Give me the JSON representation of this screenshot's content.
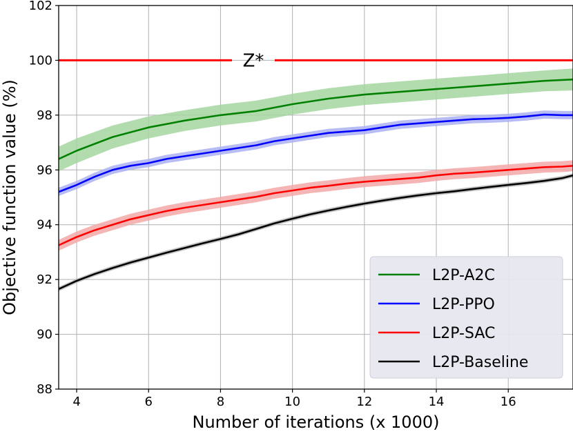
{
  "chart_data": {
    "type": "line",
    "title": "",
    "xlabel": "Number of iterations (x 1000)",
    "ylabel": "Objective function value (%)",
    "xlim": [
      3.5,
      17.8
    ],
    "ylim": [
      88,
      102
    ],
    "xticks": [
      4,
      6,
      8,
      10,
      12,
      14,
      16
    ],
    "yticks": [
      88,
      90,
      92,
      94,
      96,
      98,
      100,
      102
    ],
    "grid": true,
    "legend_position": "bottom-right",
    "reference_line": {
      "label": "Z*",
      "y": 100,
      "color": "#ff0000"
    },
    "series": [
      {
        "name": "L2P-A2C",
        "color": "#008000",
        "band_color": "#a5d6a0",
        "x": [
          3.5,
          4,
          5,
          6,
          7,
          8,
          9,
          10,
          11,
          12,
          13,
          14,
          15,
          16,
          17,
          17.8
        ],
        "y": [
          96.4,
          96.7,
          97.2,
          97.55,
          97.8,
          98.0,
          98.15,
          98.4,
          98.6,
          98.75,
          98.85,
          98.95,
          99.05,
          99.15,
          99.25,
          99.3
        ],
        "band": [
          0.45,
          0.45,
          0.42,
          0.4,
          0.38,
          0.38,
          0.38,
          0.38,
          0.38,
          0.38,
          0.38,
          0.38,
          0.38,
          0.38,
          0.38,
          0.4
        ]
      },
      {
        "name": "L2P-PPO",
        "color": "#0000ff",
        "band_color": "#aab0f2",
        "x": [
          3.5,
          4,
          4.5,
          5,
          5.5,
          6,
          6.5,
          7,
          7.5,
          8,
          8.5,
          9,
          9.5,
          10,
          10.5,
          11,
          11.5,
          12,
          12.5,
          13,
          13.5,
          14,
          14.5,
          15,
          15.5,
          16,
          16.5,
          17,
          17.5,
          17.8
        ],
        "y": [
          95.2,
          95.45,
          95.75,
          96.0,
          96.15,
          96.25,
          96.4,
          96.5,
          96.6,
          96.7,
          96.8,
          96.9,
          97.05,
          97.15,
          97.25,
          97.35,
          97.4,
          97.45,
          97.55,
          97.65,
          97.7,
          97.75,
          97.8,
          97.85,
          97.87,
          97.9,
          97.95,
          98.02,
          98.0,
          98.0
        ],
        "band": [
          0.15,
          0.15,
          0.15,
          0.15,
          0.15,
          0.15,
          0.15,
          0.15,
          0.15,
          0.15,
          0.15,
          0.15,
          0.15,
          0.15,
          0.15,
          0.15,
          0.15,
          0.15,
          0.15,
          0.15,
          0.15,
          0.15,
          0.15,
          0.15,
          0.15,
          0.15,
          0.15,
          0.15,
          0.15,
          0.15
        ]
      },
      {
        "name": "L2P-SAC",
        "color": "#ff0000",
        "band_color": "#f5a8a8",
        "x": [
          3.5,
          4,
          4.5,
          5,
          5.5,
          6,
          6.5,
          7,
          7.5,
          8,
          8.5,
          9,
          9.5,
          10,
          10.5,
          11,
          11.5,
          12,
          12.5,
          13,
          13.5,
          14,
          14.5,
          15,
          15.5,
          16,
          16.5,
          17,
          17.5,
          17.8
        ],
        "y": [
          93.25,
          93.55,
          93.8,
          94.0,
          94.2,
          94.35,
          94.5,
          94.62,
          94.72,
          94.82,
          94.92,
          95.02,
          95.15,
          95.25,
          95.35,
          95.42,
          95.5,
          95.57,
          95.62,
          95.67,
          95.72,
          95.8,
          95.86,
          95.9,
          95.95,
          96.0,
          96.05,
          96.1,
          96.12,
          96.15
        ],
        "band": [
          0.2,
          0.2,
          0.2,
          0.2,
          0.2,
          0.2,
          0.2,
          0.2,
          0.2,
          0.2,
          0.2,
          0.2,
          0.2,
          0.2,
          0.2,
          0.2,
          0.2,
          0.2,
          0.2,
          0.2,
          0.2,
          0.2,
          0.2,
          0.2,
          0.2,
          0.2,
          0.2,
          0.2,
          0.2,
          0.2
        ]
      },
      {
        "name": "L2P-Baseline",
        "color": "#000000",
        "band_color": "#b8b8b8",
        "x": [
          3.5,
          4,
          4.5,
          5,
          5.5,
          6,
          6.5,
          7,
          7.5,
          8,
          8.5,
          9,
          9.5,
          10,
          10.5,
          11,
          11.5,
          12,
          12.5,
          13,
          13.5,
          14,
          14.5,
          15,
          15.5,
          16,
          16.5,
          17,
          17.5,
          17.8
        ],
        "y": [
          91.65,
          91.95,
          92.2,
          92.42,
          92.62,
          92.8,
          92.98,
          93.15,
          93.32,
          93.48,
          93.65,
          93.85,
          94.05,
          94.22,
          94.38,
          94.52,
          94.65,
          94.77,
          94.88,
          94.98,
          95.07,
          95.15,
          95.22,
          95.3,
          95.38,
          95.45,
          95.52,
          95.6,
          95.7,
          95.8
        ],
        "band": [
          0.08,
          0.08,
          0.08,
          0.08,
          0.08,
          0.08,
          0.08,
          0.08,
          0.08,
          0.08,
          0.08,
          0.08,
          0.08,
          0.08,
          0.08,
          0.08,
          0.08,
          0.08,
          0.08,
          0.08,
          0.08,
          0.08,
          0.08,
          0.08,
          0.08,
          0.08,
          0.08,
          0.08,
          0.08,
          0.08
        ]
      }
    ]
  }
}
